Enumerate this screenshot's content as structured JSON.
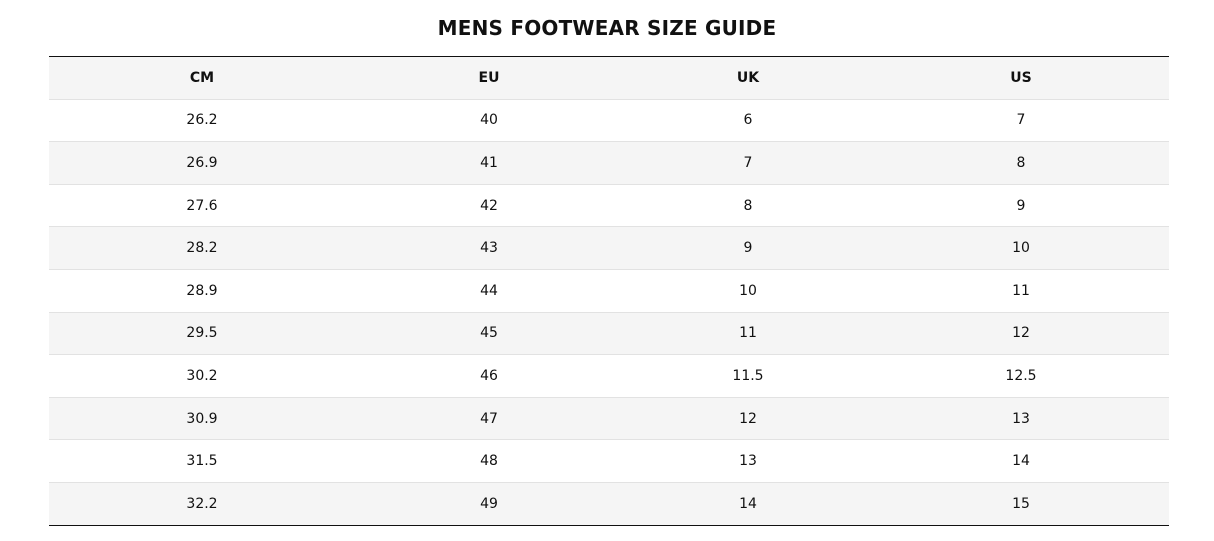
{
  "title": "MENS FOOTWEAR SIZE GUIDE",
  "columns": [
    "CM",
    "EU",
    "UK",
    "US"
  ],
  "rows": [
    [
      "26.2",
      "40",
      "6",
      "7"
    ],
    [
      "26.9",
      "41",
      "7",
      "8"
    ],
    [
      "27.6",
      "42",
      "8",
      "9"
    ],
    [
      "28.2",
      "43",
      "9",
      "10"
    ],
    [
      "28.9",
      "44",
      "10",
      "11"
    ],
    [
      "29.5",
      "45",
      "11",
      "12"
    ],
    [
      "30.2",
      "46",
      "11.5",
      "12.5"
    ],
    [
      "30.9",
      "47",
      "12",
      "13"
    ],
    [
      "31.5",
      "48",
      "13",
      "14"
    ],
    [
      "32.2",
      "49",
      "14",
      "15"
    ]
  ]
}
